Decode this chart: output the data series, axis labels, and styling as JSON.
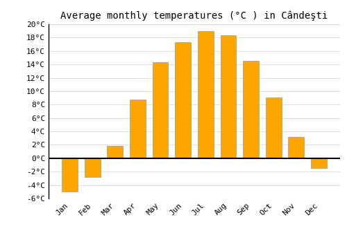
{
  "title": "Average monthly temperatures (°C ) in Cândeşti",
  "months": [
    "Jan",
    "Feb",
    "Mar",
    "Apr",
    "May",
    "Jun",
    "Jul",
    "Aug",
    "Sep",
    "Oct",
    "Nov",
    "Dec"
  ],
  "values": [
    -5.0,
    -2.8,
    1.8,
    8.8,
    14.3,
    17.3,
    19.0,
    18.3,
    14.5,
    9.1,
    3.2,
    -1.5
  ],
  "bar_color": "#FFA500",
  "bar_edge_color": "#999999",
  "ylim": [
    -6,
    20
  ],
  "yticks": [
    -6,
    -4,
    -2,
    0,
    2,
    4,
    6,
    8,
    10,
    12,
    14,
    16,
    18,
    20
  ],
  "ytick_labels": [
    "-6°C",
    "-4°C",
    "-2°C",
    "0°C",
    "2°C",
    "4°C",
    "6°C",
    "8°C",
    "10°C",
    "12°C",
    "14°C",
    "16°C",
    "18°C",
    "20°C"
  ],
  "background_color": "#ffffff",
  "grid_color": "#e0e0e0",
  "title_fontsize": 10,
  "tick_fontsize": 8,
  "bar_width": 0.7
}
